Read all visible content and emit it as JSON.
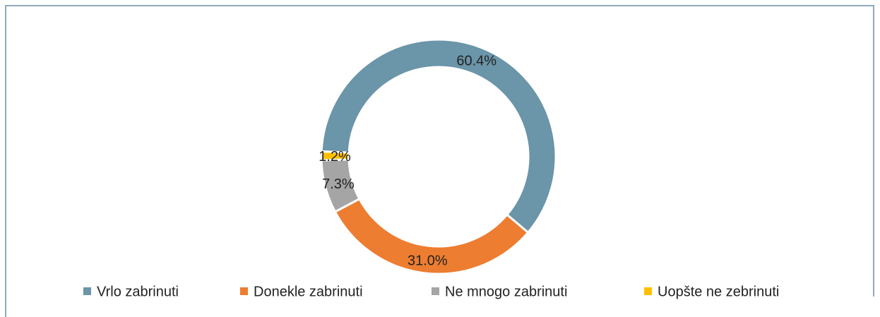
{
  "chart_data": {
    "type": "donut",
    "categories": [
      "Vrlo zabrinuti",
      "Donekle zabrinuti",
      "Ne mnogo zabrinuti",
      "Uopšte ne zebrinuti"
    ],
    "values": [
      60.4,
      31.0,
      7.3,
      1.2
    ],
    "value_labels": [
      "60.4%",
      "31.0%",
      "7.3%",
      "1.2%"
    ],
    "colors": [
      "#6b95a8",
      "#ed7d31",
      "#a5a5a5",
      "#ffc000"
    ],
    "legend": "bottom"
  }
}
